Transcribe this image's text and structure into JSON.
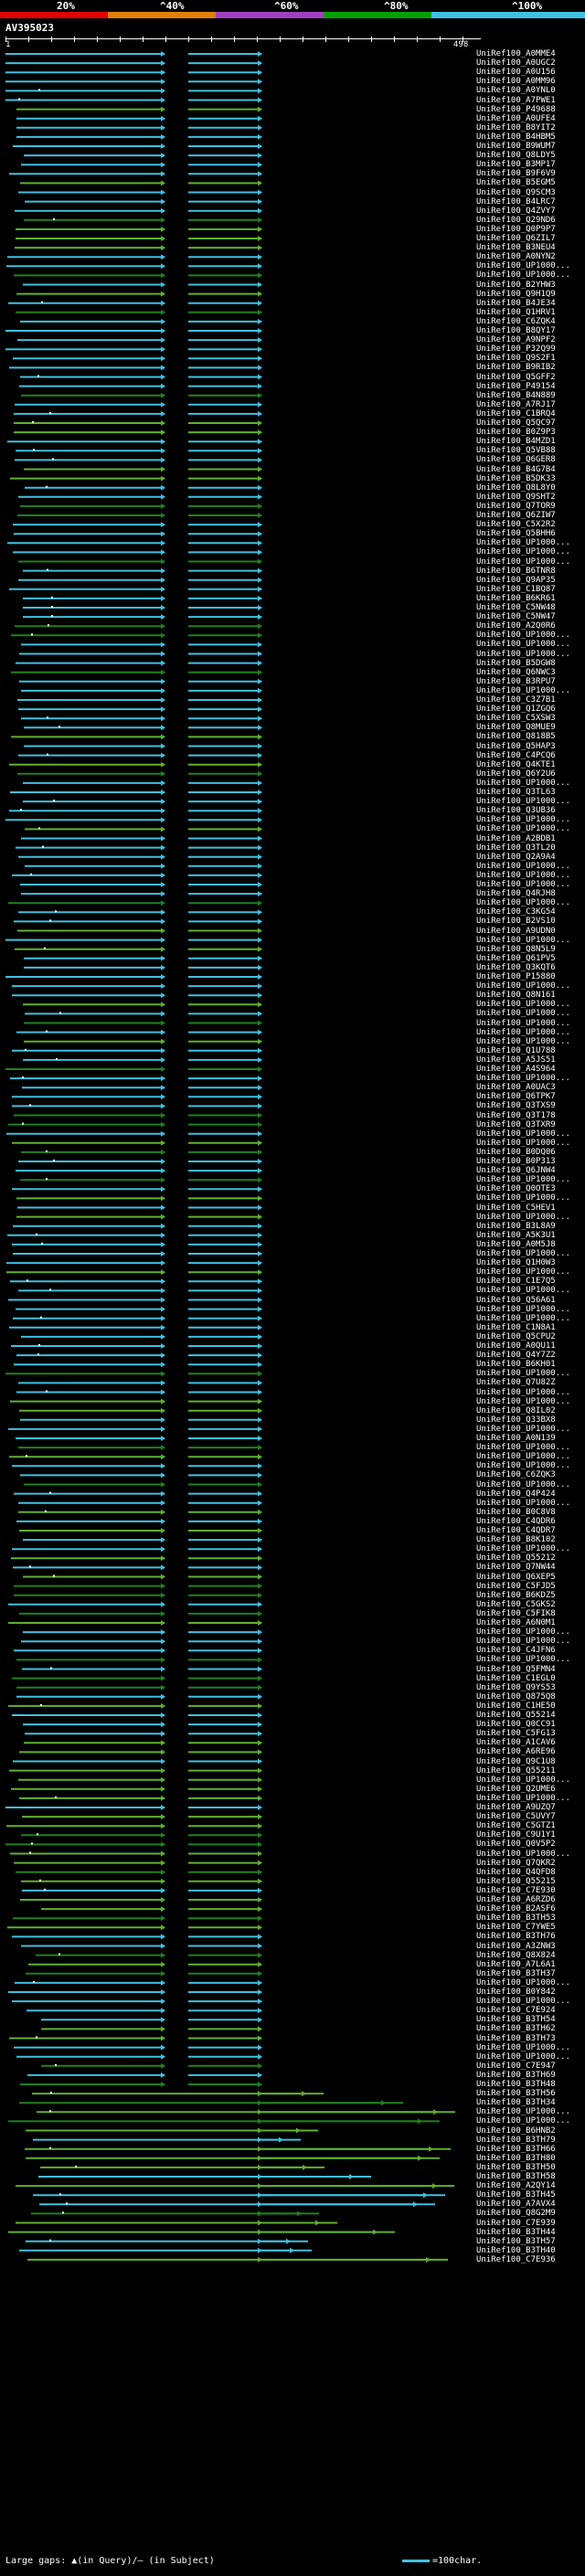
{
  "header": {
    "scale_labels": [
      "20%",
      "^40%",
      "^60%",
      "^80%",
      "^100%"
    ],
    "scale_colors": [
      "#e00000",
      "#e08000",
      "#a040c0",
      "#00a000",
      "#40c0e0"
    ]
  },
  "query": {
    "title": "AV395023",
    "ruler_start": "1",
    "ruler_end": "498"
  },
  "colors": {
    "high_identity": "#40c0e0",
    "mid_identity": "#60b030",
    "low_identity": "#208020",
    "gap_marker": "#ffffff"
  },
  "hits": [
    "UniRef100_A0MME4",
    "UniRef100_A0UGC2",
    "UniRef100_A0U156",
    "UniRef100_A0MM96",
    "UniRef100_A0YNL0",
    "UniRef100_A7PWE1",
    "UniRef100_P49688",
    "UniRef100_A0UFE4",
    "UniRef100_B8YIT2",
    "UniRef100_B4HBM5",
    "UniRef100_B9WUM7",
    "UniRef100_Q8LDY5",
    "UniRef100_B3MP17",
    "UniRef100_B9F6V9",
    "UniRef100_B5EGM5",
    "UniRef100_Q9SCM3",
    "UniRef100_B4LRC7",
    "UniRef100_Q4ZVY7",
    "UniRef100_Q29ND6",
    "UniRef100_Q0P9P7",
    "UniRef100_Q6ZIL7",
    "UniRef100_B3NEU4",
    "UniRef100_A0NYN2",
    "UniRef100_UP1000...",
    "UniRef100_UP1000...",
    "UniRef100_B2YHW3",
    "UniRef100_Q9H1Q9",
    "UniRef100_B4JE34",
    "UniRef100_Q1HRV1",
    "UniRef100_C6ZQK4",
    "UniRef100_B8QY17",
    "UniRef100_A9NPF2",
    "UniRef100_P32Q99",
    "UniRef100_Q9S2F1",
    "UniRef100_B9RIB2",
    "UniRef100_Q5GFF2",
    "UniRef100_P49154",
    "UniRef100_B4N889",
    "UniRef100_A7RJ17",
    "UniRef100_C1BRQ4",
    "UniRef100_Q5QC97",
    "UniRef100_B0Z9P3",
    "UniRef100_B4MZD1",
    "UniRef100_Q5VB88",
    "UniRef100_Q6GER8",
    "UniRef100_B4G7B4",
    "UniRef100_B5DK33",
    "UniRef100_Q8L8Y0",
    "UniRef100_Q9SHT2",
    "UniRef100_Q7TOR9",
    "UniRef100_Q6ZIW7",
    "UniRef100_C5X2R2",
    "UniRef100_Q5BHH6",
    "UniRef100_UP1000...",
    "UniRef100_UP1000...",
    "UniRef100_UP1000...",
    "UniRef100_B6TNR8",
    "UniRef100_Q9AP35",
    "UniRef100_C1BQ87",
    "UniRef100_B6KR61",
    "UniRef100_C5NW48",
    "UniRef100_C5NW47",
    "UniRef100_A2Q0R6",
    "UniRef100_UP1000...",
    "UniRef100_UP1000...",
    "UniRef100_UP1000...",
    "UniRef100_B5DGW8",
    "UniRef100_Q6NWC3",
    "UniRef100_B3RPU7",
    "UniRef100_UP1000...",
    "UniRef100_C3Z7B1",
    "UniRef100_Q1ZGQ6",
    "UniRef100_C5XSW3",
    "UniRef100_Q8MUE9",
    "UniRef100_Q818B5",
    "UniRef100_Q5HAP3",
    "UniRef100_C4PCQ6",
    "UniRef100_Q4KTE1",
    "UniRef100_Q6Y2U6",
    "UniRef100_UP1000...",
    "UniRef100_Q3TL63",
    "UniRef100_UP1000...",
    "UniRef100_Q3UB36",
    "UniRef100_UP1000...",
    "UniRef100_UP1000...",
    "UniRef100_A2BDB1",
    "UniRef100_Q3TL20",
    "UniRef100_Q2A9A4",
    "UniRef100_UP1000...",
    "UniRef100_UP1000...",
    "UniRef100_UP1000...",
    "UniRef100_Q4RJH8",
    "UniRef100_UP1000...",
    "UniRef100_C3KG54",
    "UniRef100_B2VS10",
    "UniRef100_A9UDN0",
    "UniRef100_UP1000...",
    "UniRef100_Q8N5L9",
    "UniRef100_Q61PV5",
    "UniRef100_Q3KQT6",
    "UniRef100_P15880",
    "UniRef100_UP1000...",
    "UniRef100_Q8N161",
    "UniRef100_UP1000...",
    "UniRef100_UP1000...",
    "UniRef100_UP1000...",
    "UniRef100_UP1000...",
    "UniRef100_UP1000...",
    "UniRef100_Q1U788",
    "UniRef100_A5JS51",
    "UniRef100_A4S964",
    "UniRef100_UP1000...",
    "UniRef100_A0UAC3",
    "UniRef100_Q6TPK7",
    "UniRef100_Q3TXS9",
    "UniRef100_Q3T178",
    "UniRef100_Q3TXR9",
    "UniRef100_UP1000...",
    "UniRef100_UP1000...",
    "UniRef100_B0DQ06",
    "UniRef100_B0P313",
    "UniRef100_Q6JNW4",
    "UniRef100_UP1000...",
    "UniRef100_Q0OTE3",
    "UniRef100_UP1000...",
    "UniRef100_C5HEV1",
    "UniRef100_UP1000...",
    "UniRef100_B3L8A9",
    "UniRef100_A5K3U1",
    "UniRef100_A0M5J8",
    "UniRef100_UP1000...",
    "UniRef100_Q1H0W3",
    "UniRef100_UP1000...",
    "UniRef100_C1E7Q5",
    "UniRef100_UP1000...",
    "UniRef100_Q56A61",
    "UniRef100_UP1000...",
    "UniRef100_UP1000...",
    "UniRef100_C1N8A1",
    "UniRef100_Q5CPU2",
    "UniRef100_A0QU11",
    "UniRef100_Q4Y7Z2",
    "UniRef100_B6KH01",
    "UniRef100_UP1000...",
    "UniRef100_Q7U82Z",
    "UniRef100_UP1000...",
    "UniRef100_UP1000...",
    "UniRef100_Q8IL02",
    "UniRef100_Q33BX8",
    "UniRef100_UP1000...",
    "UniRef100_A0N139",
    "UniRef100_UP1000...",
    "UniRef100_UP1000...",
    "UniRef100_UP1000...",
    "UniRef100_C6ZQK3",
    "UniRef100_UP1000...",
    "UniRef100_Q4P424",
    "UniRef100_UP1000...",
    "UniRef100_B0C8V8",
    "UniRef100_C4QDR6",
    "UniRef100_C4QDR7",
    "UniRef100_B8K102",
    "UniRef100_UP1000...",
    "UniRef100_Q55212",
    "UniRef100_Q7NW44",
    "UniRef100_Q6XEP5",
    "UniRef100_C5FJD5",
    "UniRef100_B6KDZ5",
    "UniRef100_C5GKS2",
    "UniRef100_C5FIK8",
    "UniRef100_A6N0M1",
    "UniRef100_UP1000...",
    "UniRef100_UP1000...",
    "UniRef100_C4JFN6",
    "UniRef100_UP1000...",
    "UniRef100_Q5FMN4",
    "UniRef100_C1EGL0",
    "UniRef100_Q9YS53",
    "UniRef100_Q875Q8",
    "UniRef100_C1HE50",
    "UniRef100_Q55214",
    "UniRef100_Q0CC91",
    "UniRef100_C5FG13",
    "UniRef100_A1CAV6",
    "UniRef100_A6RE96",
    "UniRef100_Q9C1U8",
    "UniRef100_Q55211",
    "UniRef100_UP1000...",
    "UniRef100_Q2UME6",
    "UniRef100_UP1000...",
    "UniRef100_A9UZQ7",
    "UniRef100_C5UVY7",
    "UniRef100_C5GTZ1",
    "UniRef100_C9U1Y1",
    "UniRef100_Q0V5P2",
    "UniRef100_UP1000...",
    "UniRef100_Q7QKR2",
    "UniRef100_Q4QFD8",
    "UniRef100_Q55215",
    "UniRef100_C7E930",
    "UniRef100_A6RZD6",
    "UniRef100_B2ASF6",
    "UniRef100_B3TH53",
    "UniRef100_C7YWE5",
    "UniRef100_B3TH76",
    "UniRef100_A3ZNW3",
    "UniRef100_Q8X824",
    "UniRef100_A7L6A1",
    "UniRef100_B3TH37",
    "UniRef100_UP1000...",
    "UniRef100_B0Y842",
    "UniRef100_UP1000...",
    "UniRef100_C7E924",
    "UniRef100_B3TH54",
    "UniRef100_B3TH62",
    "UniRef100_B3TH73",
    "UniRef100_UP1000...",
    "UniRef100_UP1000...",
    "UniRef100_C7E947",
    "UniRef100_B3TH69",
    "UniRef100_B3TH48",
    "UniRef100_B3TH56",
    "UniRef100_B3TH34",
    "UniRef100_UP1000...",
    "UniRef100_UP1000...",
    "UniRef100_B6HNB2",
    "UniRef100_B3TH79",
    "UniRef100_B3TH66",
    "UniRef100_B3TH80",
    "UniRef100_B3TH50",
    "UniRef100_B3TH58",
    "UniRef100_A2QY14",
    "UniRef100_B3TH45",
    "UniRef100_A7AVX4",
    "UniRef100_Q8G2M9",
    "UniRef100_C7E939",
    "UniRef100_B3TH44",
    "UniRef100_B3TH57",
    "UniRef100_B3TH40",
    "UniRef100_C7E936"
  ],
  "legend": {
    "gaps_text": "Large gaps: ▲(in Query)/– (in Subject)",
    "scale_text": "=100char."
  }
}
